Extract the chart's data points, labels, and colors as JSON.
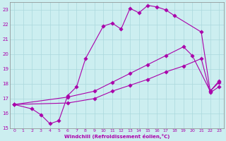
{
  "title": "",
  "xlabel": "Windchill (Refroidissement éolien,°C)",
  "ylabel": "",
  "xlim": [
    -0.5,
    23.5
  ],
  "ylim": [
    15,
    23.5
  ],
  "yticks": [
    15,
    16,
    17,
    18,
    19,
    20,
    21,
    22,
    23
  ],
  "xticks": [
    0,
    1,
    2,
    3,
    4,
    5,
    6,
    7,
    8,
    9,
    10,
    11,
    12,
    13,
    14,
    15,
    16,
    17,
    18,
    19,
    20,
    21,
    22,
    23
  ],
  "bg_color": "#cceef0",
  "grid_color": "#aad8dc",
  "line_color": "#aa00aa",
  "line1_x": [
    0,
    2,
    3,
    4,
    5,
    6,
    7,
    8,
    10,
    11,
    12,
    13,
    14,
    15,
    16,
    17,
    18,
    21,
    22,
    23
  ],
  "line1_y": [
    16.6,
    16.3,
    15.9,
    15.3,
    15.5,
    17.2,
    17.8,
    19.7,
    21.9,
    22.1,
    21.7,
    23.1,
    22.8,
    23.3,
    23.2,
    23.0,
    22.6,
    21.5,
    17.5,
    18.1
  ],
  "line2_x": [
    0,
    6,
    9,
    11,
    13,
    15,
    17,
    19,
    20,
    22,
    23
  ],
  "line2_y": [
    16.6,
    17.1,
    17.5,
    18.1,
    18.7,
    19.3,
    19.9,
    20.5,
    19.9,
    17.5,
    18.2
  ],
  "line3_x": [
    0,
    6,
    9,
    11,
    13,
    15,
    17,
    19,
    21,
    22,
    23
  ],
  "line3_y": [
    16.6,
    16.7,
    17.0,
    17.5,
    17.9,
    18.3,
    18.8,
    19.2,
    19.7,
    17.4,
    17.8
  ]
}
